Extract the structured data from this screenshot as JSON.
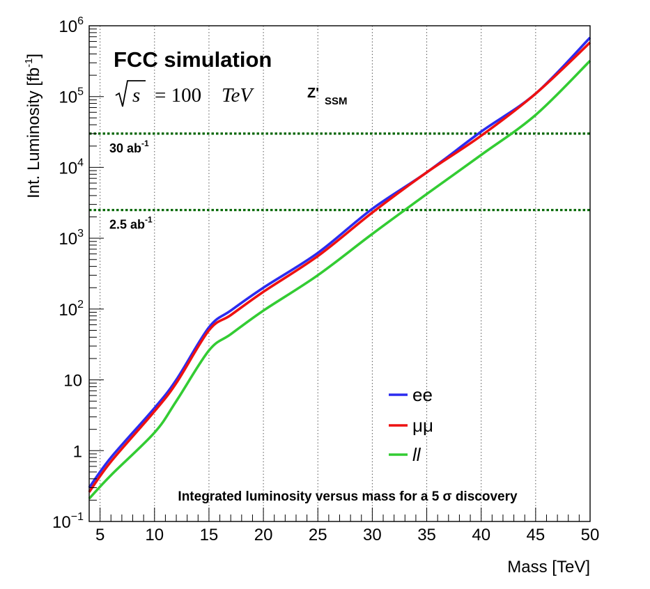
{
  "chart_data": {
    "type": "line",
    "title": "FCC simulation",
    "energy_label": {
      "sqrt": "s",
      "rest": "= 100",
      "unit": "TeV"
    },
    "model_label": {
      "main": "Z'",
      "sub": "SSM"
    },
    "annotation": "Integrated luminosity versus mass for a 5 σ discovery",
    "xlabel": "Mass [TeV]",
    "ylabel": {
      "main": "Int. Luminosity [fb",
      "sup": "-1",
      "close": "]"
    },
    "xlim": [
      4,
      50
    ],
    "ylim": [
      0.1,
      1000000
    ],
    "yscale": "log",
    "grid": "vertical-dotted",
    "legend_position": "lower-right",
    "x_ticks": [
      5,
      10,
      15,
      20,
      25,
      30,
      35,
      40,
      45,
      50
    ],
    "y_ticks": [
      {
        "value": 0.1,
        "base": "10",
        "exp": "−1"
      },
      {
        "value": 1,
        "base": "1",
        "exp": ""
      },
      {
        "value": 10,
        "base": "10",
        "exp": ""
      },
      {
        "value": 100,
        "base": "10",
        "exp": "2"
      },
      {
        "value": 1000,
        "base": "10",
        "exp": "3"
      },
      {
        "value": 10000,
        "base": "10",
        "exp": "4"
      },
      {
        "value": 100000,
        "base": "10",
        "exp": "5"
      },
      {
        "value": 1000000,
        "base": "10",
        "exp": "6"
      }
    ],
    "reference_lines": [
      {
        "value": 30000,
        "label": "30 ab",
        "sup": "-1",
        "color": "#006400"
      },
      {
        "value": 2500,
        "label": "2.5 ab",
        "sup": "-1",
        "color": "#006400"
      }
    ],
    "series": [
      {
        "name": "ee",
        "color": "#2b2bef",
        "x": [
          4,
          6,
          10,
          12,
          15,
          17,
          20,
          25,
          30,
          35,
          40,
          45,
          50
        ],
        "y": [
          0.3,
          0.8,
          4,
          10,
          55,
          95,
          200,
          620,
          2600,
          8500,
          32000,
          110000,
          680000
        ]
      },
      {
        "name": "μμ",
        "color": "#ee1111",
        "x": [
          4,
          6,
          10,
          12,
          15,
          17,
          20,
          25,
          30,
          35,
          40,
          45,
          50
        ],
        "y": [
          0.26,
          0.7,
          3.6,
          9,
          50,
          82,
          175,
          560,
          2300,
          8500,
          28000,
          110000,
          580000
        ]
      },
      {
        "name": "ll",
        "color": "#33cc33",
        "x": [
          4,
          6,
          10,
          12,
          15,
          17,
          20,
          25,
          30,
          35,
          40,
          45,
          50
        ],
        "y": [
          0.21,
          0.45,
          1.8,
          5,
          26,
          44,
          95,
          300,
          1150,
          4200,
          15000,
          55000,
          320000
        ]
      }
    ]
  }
}
